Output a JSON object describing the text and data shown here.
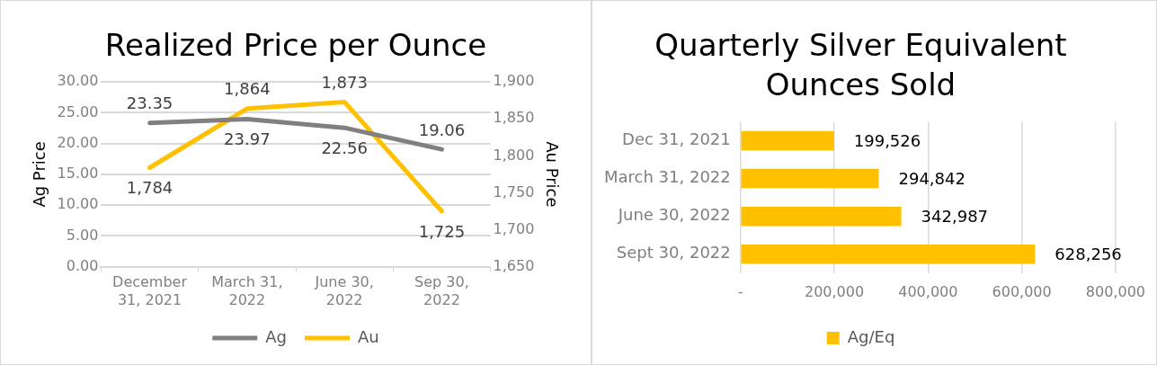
{
  "chart_data": [
    {
      "type": "line",
      "title": "Realized Price per Ounce",
      "categories": [
        "December 31, 2021",
        "March 31, 2022",
        "June 30, 2022",
        "Sep 30, 2022"
      ],
      "series": [
        {
          "name": "Ag",
          "color": "#808080",
          "values": [
            23.35,
            23.97,
            22.56,
            19.06
          ],
          "value_labels": [
            "23.35",
            "23.97",
            "22.56",
            "19.06"
          ]
        },
        {
          "name": "Au",
          "color": "#ffc000",
          "values": [
            1784,
            1864,
            1873,
            1725
          ],
          "value_labels": [
            "1,784",
            "1,864",
            "1,873",
            "1,725"
          ],
          "axis": "y2"
        }
      ],
      "ylabel": "Ag Price",
      "y2label": "Au Price",
      "ylim": [
        0,
        30
      ],
      "yticks": [
        {
          "value": 0,
          "label": "0.00"
        },
        {
          "value": 5,
          "label": "5.00"
        },
        {
          "value": 10,
          "label": "10.00"
        },
        {
          "value": 15,
          "label": "15.00"
        },
        {
          "value": 20,
          "label": "20.00"
        },
        {
          "value": 25,
          "label": "25.00"
        },
        {
          "value": 30,
          "label": "30.00"
        }
      ],
      "y2lim": [
        1650,
        1900
      ],
      "y2ticks": [
        {
          "value": 1650,
          "label": "1,650"
        },
        {
          "value": 1700,
          "label": "1,700"
        },
        {
          "value": 1750,
          "label": "1,750"
        },
        {
          "value": 1800,
          "label": "1,800"
        },
        {
          "value": 1850,
          "label": "1,850"
        },
        {
          "value": 1900,
          "label": "1,900"
        }
      ],
      "grid": "y",
      "legend": "bottom",
      "marker": "none",
      "line_style": "solid"
    },
    {
      "type": "bar",
      "orientation": "horizontal",
      "title": "Quarterly Silver Equivalent Ounces Sold",
      "categories": [
        "Dec 31, 2021",
        "March 31, 2022",
        "June 30, 2022",
        "Sept 30, 2022"
      ],
      "series": [
        {
          "name": "Ag/Eq",
          "color": "#ffc000",
          "values": [
            199526,
            294842,
            342987,
            628256
          ],
          "value_labels": [
            "199,526",
            "294,842",
            "342,987",
            "628,256"
          ]
        }
      ],
      "xlim": [
        0,
        800000
      ],
      "xticks": [
        {
          "value": 0,
          "label": "-"
        },
        {
          "value": 200000,
          "label": "200,000"
        },
        {
          "value": 400000,
          "label": "400,000"
        },
        {
          "value": 600000,
          "label": "600,000"
        },
        {
          "value": 800000,
          "label": "800,000"
        }
      ],
      "grid": "x",
      "legend": "bottom"
    }
  ]
}
